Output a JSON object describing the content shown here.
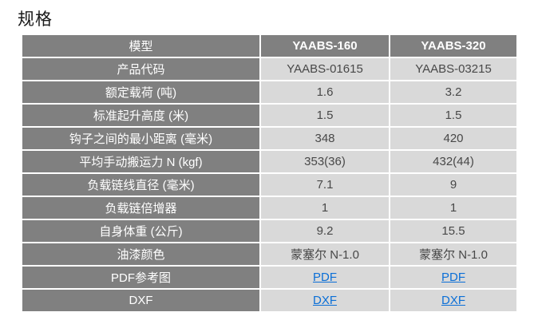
{
  "title": "规格",
  "colors": {
    "header_bg": "#808080",
    "label_bg": "#808080",
    "value_bg": "#d9d9d9",
    "value_text": "#484848",
    "header_text": "#ffffff",
    "link_color": "#0b6fd7"
  },
  "table": {
    "header": {
      "label": "模型",
      "models": [
        "YAABS-160",
        "YAABS-320"
      ]
    },
    "rows": [
      {
        "label": "产品代码",
        "values": [
          "YAABS-01615",
          "YAABS-03215"
        ]
      },
      {
        "label": "额定载荷 (吨)",
        "values": [
          "1.6",
          "3.2"
        ]
      },
      {
        "label": "标准起升高度 (米)",
        "values": [
          "1.5",
          "1.5"
        ]
      },
      {
        "label": "钩子之间的最小距离 (毫米)",
        "values": [
          "348",
          "420"
        ]
      },
      {
        "label": "平均手动搬运力 N (kgf)",
        "values": [
          "353(36)",
          "432(44)"
        ]
      },
      {
        "label": "负载链线直径 (毫米)",
        "values": [
          "7.1",
          "9"
        ]
      },
      {
        "label": "负载链倍增器",
        "values": [
          "1",
          "1"
        ]
      },
      {
        "label": "自身体重 (公斤)",
        "values": [
          "9.2",
          "15.5"
        ]
      },
      {
        "label": "油漆颜色",
        "values": [
          "蒙塞尔 N-1.0",
          "蒙塞尔 N-1.0"
        ]
      },
      {
        "label": "PDF参考图",
        "values": [
          "PDF",
          "PDF"
        ]
      },
      {
        "label": "DXF",
        "values": [
          "DXF",
          "DXF"
        ]
      }
    ]
  }
}
